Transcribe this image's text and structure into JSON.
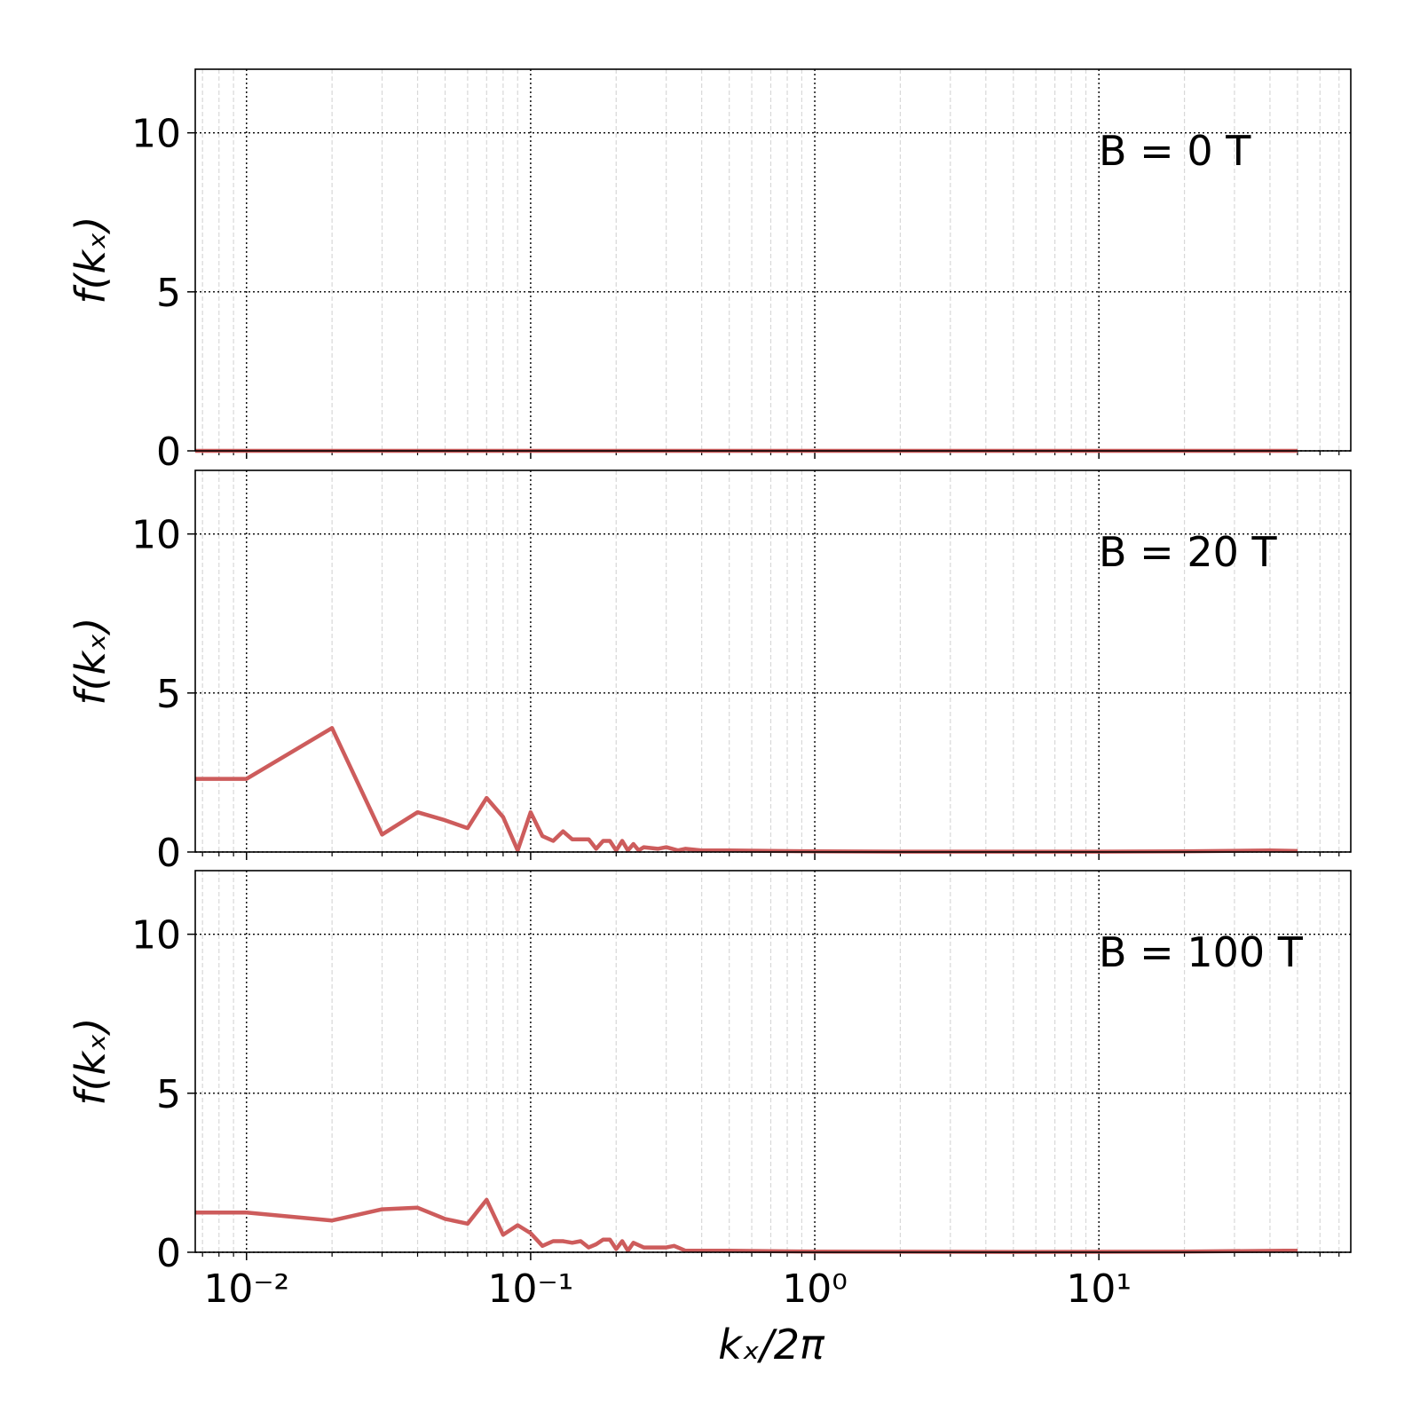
{
  "chart_data": [
    {
      "type": "line",
      "annotation": "B = 0 T",
      "ylabel": "f(kₓ)",
      "x": [
        0.0066,
        0.01,
        0.1,
        1,
        10,
        50
      ],
      "values": [
        0,
        0,
        0,
        0,
        0,
        0
      ],
      "color": "#cd5c5c",
      "log_x": true,
      "grid": true,
      "xlim": [
        0.0066,
        77
      ],
      "ylim": [
        0,
        12
      ],
      "xticks": [
        0.01,
        0.1,
        1,
        10
      ],
      "xminorticks": [
        0.007,
        0.008,
        0.009,
        0.02,
        0.03,
        0.04,
        0.05,
        0.06,
        0.07,
        0.08,
        0.09,
        0.2,
        0.3,
        0.4,
        0.5,
        0.6,
        0.7,
        0.8,
        0.9,
        2,
        3,
        4,
        5,
        6,
        7,
        8,
        9,
        20,
        30,
        40,
        50,
        60,
        70
      ],
      "yticks": [
        0,
        5,
        10
      ]
    },
    {
      "type": "line",
      "annotation": "B = 20 T",
      "ylabel": "f(kₓ)",
      "x": [
        0.0066,
        0.01,
        0.02,
        0.03,
        0.04,
        0.05,
        0.06,
        0.07,
        0.08,
        0.09,
        0.1,
        0.11,
        0.12,
        0.13,
        0.14,
        0.15,
        0.16,
        0.17,
        0.18,
        0.19,
        0.2,
        0.21,
        0.22,
        0.23,
        0.24,
        0.25,
        0.28,
        0.3,
        0.33,
        0.35,
        0.4,
        0.5,
        1,
        2,
        5,
        10,
        20,
        40,
        50
      ],
      "values": [
        2.3,
        2.3,
        3.9,
        0.55,
        1.25,
        1.0,
        0.75,
        1.7,
        1.1,
        0.05,
        1.25,
        0.5,
        0.35,
        0.65,
        0.4,
        0.4,
        0.4,
        0.1,
        0.35,
        0.35,
        0.05,
        0.35,
        0.05,
        0.25,
        0.05,
        0.15,
        0.1,
        0.15,
        0.05,
        0.1,
        0.05,
        0.05,
        0.02,
        0.01,
        0.01,
        0.01,
        0.02,
        0.05,
        0.03
      ],
      "color": "#cd5c5c",
      "log_x": true,
      "grid": true,
      "xlim": [
        0.0066,
        77
      ],
      "ylim": [
        0,
        12
      ],
      "xticks": [
        0.01,
        0.1,
        1,
        10
      ],
      "xminorticks": [
        0.007,
        0.008,
        0.009,
        0.02,
        0.03,
        0.04,
        0.05,
        0.06,
        0.07,
        0.08,
        0.09,
        0.2,
        0.3,
        0.4,
        0.5,
        0.6,
        0.7,
        0.8,
        0.9,
        2,
        3,
        4,
        5,
        6,
        7,
        8,
        9,
        20,
        30,
        40,
        50,
        60,
        70
      ],
      "yticks": [
        0,
        5,
        10
      ]
    },
    {
      "type": "line",
      "annotation": "B = 100 T",
      "ylabel": "f(kₓ)",
      "xlabel": "kₓ/2π",
      "x": [
        0.0066,
        0.01,
        0.02,
        0.03,
        0.04,
        0.05,
        0.06,
        0.07,
        0.08,
        0.09,
        0.1,
        0.11,
        0.12,
        0.13,
        0.14,
        0.15,
        0.16,
        0.17,
        0.18,
        0.19,
        0.2,
        0.21,
        0.22,
        0.23,
        0.25,
        0.3,
        0.32,
        0.35,
        0.4,
        0.5,
        1,
        5,
        20,
        45,
        50
      ],
      "values": [
        1.25,
        1.25,
        1.0,
        1.35,
        1.4,
        1.05,
        0.9,
        1.65,
        0.55,
        0.85,
        0.6,
        0.2,
        0.35,
        0.35,
        0.3,
        0.35,
        0.15,
        0.25,
        0.4,
        0.4,
        0.1,
        0.35,
        0.05,
        0.3,
        0.15,
        0.15,
        0.2,
        0.05,
        0.05,
        0.05,
        0.02,
        0.01,
        0.02,
        0.05,
        0.05
      ],
      "color": "#cd5c5c",
      "log_x": true,
      "grid": true,
      "xlim": [
        0.0066,
        77
      ],
      "ylim": [
        0,
        12
      ],
      "xticks": [
        {
          "value": 0.01,
          "label": "10⁻²"
        },
        {
          "value": 0.1,
          "label": "10⁻¹"
        },
        {
          "value": 1,
          "label": "10⁰"
        },
        {
          "value": 10,
          "label": "10¹"
        }
      ],
      "xminorticks": [
        0.007,
        0.008,
        0.009,
        0.02,
        0.03,
        0.04,
        0.05,
        0.06,
        0.07,
        0.08,
        0.09,
        0.2,
        0.3,
        0.4,
        0.5,
        0.6,
        0.7,
        0.8,
        0.9,
        2,
        3,
        4,
        5,
        6,
        7,
        8,
        9,
        20,
        30,
        40,
        50,
        60,
        70
      ],
      "yticks": [
        0,
        5,
        10
      ]
    }
  ]
}
